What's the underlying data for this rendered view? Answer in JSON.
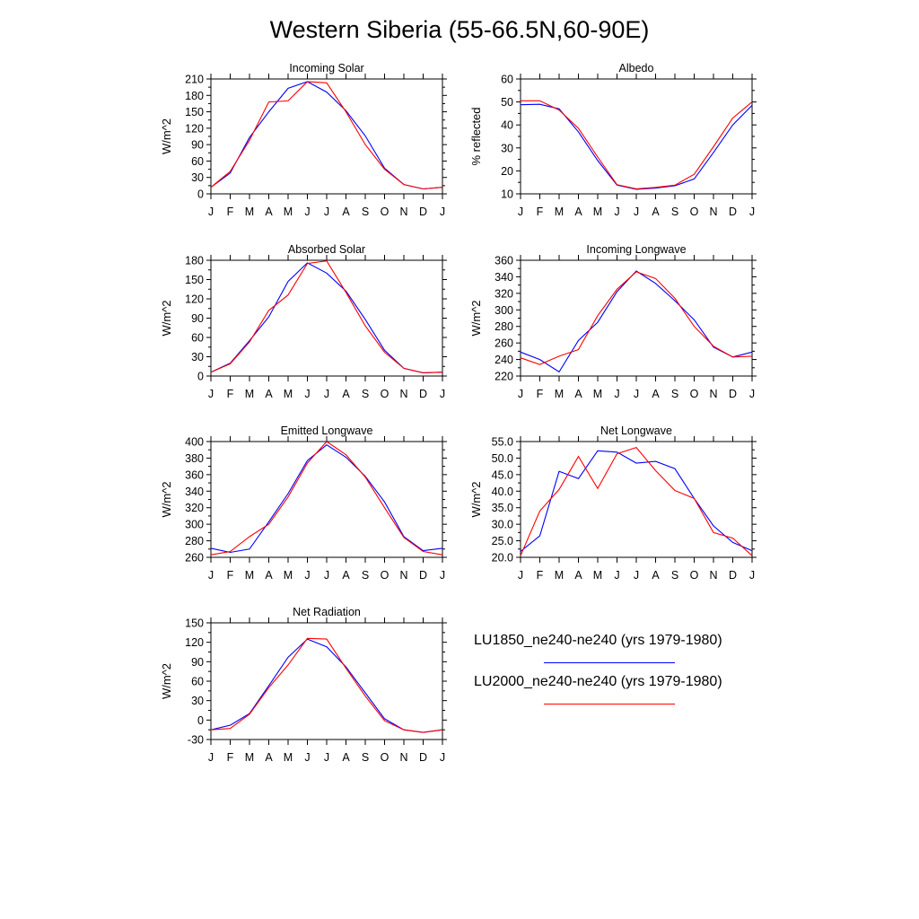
{
  "title": "Western Siberia (55-66.5N,60-90E)",
  "colors": {
    "blue": "#0000ff",
    "red": "#ff0000",
    "axis": "#000000"
  },
  "legend": [
    {
      "label": "LU1850_ne240-ne240 (yrs 1979-1980)",
      "color": "#0000ff"
    },
    {
      "label": "LU2000_ne240-ne240 (yrs 1979-1980)",
      "color": "#ff0000"
    }
  ],
  "chart_data": [
    {
      "type": "line",
      "title": "Incoming Solar",
      "ylabel": "W/m^2",
      "categories": [
        "J",
        "F",
        "M",
        "A",
        "M",
        "J",
        "J",
        "A",
        "S",
        "O",
        "N",
        "D",
        "J"
      ],
      "ylim": [
        0,
        210
      ],
      "yticks": [
        "0",
        "30",
        "60",
        "90",
        "120",
        "150",
        "180",
        "210"
      ],
      "series": [
        {
          "color": "#0000ff",
          "values": [
            12,
            38,
            103,
            150,
            193,
            205,
            186,
            152,
            106,
            47,
            17,
            9,
            12
          ]
        },
        {
          "color": "#ff0000",
          "values": [
            12,
            41,
            98,
            168,
            170,
            205,
            203,
            150,
            90,
            45,
            17,
            9,
            12
          ]
        }
      ]
    },
    {
      "type": "line",
      "title": "Albedo",
      "ylabel": "% reflected",
      "categories": [
        "J",
        "F",
        "M",
        "A",
        "M",
        "J",
        "J",
        "A",
        "S",
        "O",
        "N",
        "D",
        "J"
      ],
      "ylim": [
        10,
        60
      ],
      "yticks": [
        "10",
        "20",
        "30",
        "40",
        "50",
        "60"
      ],
      "series": [
        {
          "color": "#0000ff",
          "values": [
            48.8,
            49,
            47,
            37,
            24.5,
            13.8,
            12,
            12.5,
            13.5,
            16.5,
            28,
            40,
            48.5
          ]
        },
        {
          "color": "#ff0000",
          "values": [
            50.5,
            50.5,
            46.5,
            38.5,
            26,
            14,
            12.2,
            12.8,
            13.8,
            18.5,
            30.5,
            43,
            50
          ]
        }
      ]
    },
    {
      "type": "line",
      "title": "Absorbed Solar",
      "ylabel": "W/m^2",
      "categories": [
        "J",
        "F",
        "M",
        "A",
        "M",
        "J",
        "J",
        "A",
        "S",
        "O",
        "N",
        "D",
        "J"
      ],
      "ylim": [
        0,
        180
      ],
      "yticks": [
        "0",
        "30",
        "60",
        "90",
        "120",
        "150",
        "180"
      ],
      "series": [
        {
          "color": "#0000ff",
          "values": [
            6,
            20,
            55,
            92,
            147,
            176,
            160,
            132,
            88,
            40,
            12,
            5,
            6
          ]
        },
        {
          "color": "#ff0000",
          "values": [
            6,
            19,
            53,
            102,
            126,
            175,
            179,
            130,
            78,
            37,
            12,
            5,
            6
          ]
        }
      ]
    },
    {
      "type": "line",
      "title": "Incoming Longwave",
      "ylabel": "W/m^2",
      "categories": [
        "J",
        "F",
        "M",
        "A",
        "M",
        "J",
        "J",
        "A",
        "S",
        "O",
        "N",
        "D",
        "J"
      ],
      "ylim": [
        220,
        360
      ],
      "yticks": [
        "220",
        "240",
        "260",
        "280",
        "300",
        "320",
        "340",
        "360"
      ],
      "series": [
        {
          "color": "#0000ff",
          "values": [
            249,
            240,
            225,
            263,
            285,
            322,
            347,
            332,
            311,
            288,
            255,
            243,
            249
          ]
        },
        {
          "color": "#ff0000",
          "values": [
            242,
            234,
            244,
            252,
            293,
            325,
            346,
            338,
            314,
            280,
            256,
            243,
            244
          ]
        }
      ]
    },
    {
      "type": "line",
      "title": "Emitted Longwave",
      "ylabel": "W/m^2",
      "categories": [
        "J",
        "F",
        "M",
        "A",
        "M",
        "J",
        "J",
        "A",
        "S",
        "O",
        "N",
        "D",
        "J"
      ],
      "ylim": [
        260,
        400
      ],
      "yticks": [
        "260",
        "280",
        "300",
        "320",
        "340",
        "360",
        "380",
        "400"
      ],
      "series": [
        {
          "color": "#0000ff",
          "values": [
            271,
            266,
            270,
            303,
            337,
            377,
            396,
            381,
            358,
            327,
            285,
            268,
            271
          ]
        },
        {
          "color": "#ff0000",
          "values": [
            263,
            267,
            285,
            300,
            333,
            374,
            400,
            384,
            357,
            320,
            284,
            267,
            263
          ]
        }
      ]
    },
    {
      "type": "line",
      "title": "Net Longwave",
      "ylabel": "W/m^2",
      "categories": [
        "J",
        "F",
        "M",
        "A",
        "M",
        "J",
        "J",
        "A",
        "S",
        "O",
        "N",
        "D",
        "J"
      ],
      "ylim": [
        20,
        55
      ],
      "yticks": [
        "20.0",
        "25.0",
        "30.0",
        "35.0",
        "40.0",
        "45.0",
        "50.0",
        "55.0"
      ],
      "series": [
        {
          "color": "#0000ff",
          "values": [
            21.8,
            26.5,
            46,
            43.8,
            52.2,
            51.8,
            48.5,
            49,
            46.8,
            37.8,
            29.5,
            24.5,
            22
          ]
        },
        {
          "color": "#ff0000",
          "values": [
            20.5,
            34,
            40.5,
            50.5,
            40.8,
            51.3,
            53.2,
            46.2,
            40.2,
            37.8,
            27.5,
            25.8,
            20.5
          ]
        }
      ]
    },
    {
      "type": "line",
      "title": "Net Radiation",
      "ylabel": "W/m^2",
      "categories": [
        "J",
        "F",
        "M",
        "A",
        "M",
        "J",
        "J",
        "A",
        "S",
        "O",
        "N",
        "D",
        "J"
      ],
      "ylim": [
        -30,
        150
      ],
      "yticks": [
        "-30",
        "0",
        "30",
        "60",
        "90",
        "120",
        "150"
      ],
      "series": [
        {
          "color": "#0000ff",
          "values": [
            -15,
            -8,
            10,
            53,
            97,
            125,
            113,
            82,
            42,
            2,
            -15,
            -19,
            -15
          ]
        },
        {
          "color": "#ff0000",
          "values": [
            -15,
            -13,
            9,
            50,
            85,
            126,
            125,
            80,
            37,
            -1,
            -15,
            -19,
            -15
          ]
        }
      ]
    }
  ]
}
